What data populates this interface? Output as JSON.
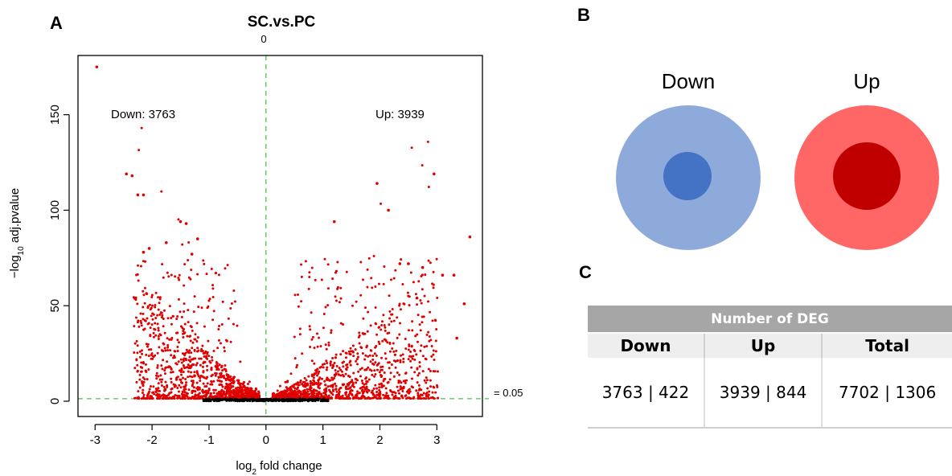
{
  "panels": {
    "a": "A",
    "b": "B",
    "c": "C"
  },
  "chart_data": {
    "type": "scatter",
    "title": "SC.vs.PC",
    "xlabel": "log2 fold change",
    "ylabel": "−log10 adj.pvalue",
    "xlim": [
      -3.3,
      3.8
    ],
    "ylim": [
      -8,
      181
    ],
    "x_ticks": [
      -3,
      -2,
      -1,
      0,
      1,
      2,
      3
    ],
    "y_ticks": [
      0,
      50,
      100,
      150
    ],
    "vline": {
      "x": 0,
      "label": "0"
    },
    "hline": {
      "y": 1.3,
      "label": "= 0.05"
    },
    "annotations": {
      "down": "Down: 3763",
      "up": "Up: 3939"
    },
    "colors": {
      "significant": "#e00000",
      "not_significant": "#000000",
      "threshold_line": "#4cc44c"
    },
    "highlight_points": [
      [
        -2.97,
        175
      ],
      [
        -2.45,
        119
      ],
      [
        -2.35,
        118
      ],
      [
        -2.25,
        108
      ],
      [
        -2.15,
        108
      ],
      [
        -1.5,
        94
      ],
      [
        -1.4,
        93
      ],
      [
        -1.2,
        85
      ],
      [
        -1.3,
        77
      ],
      [
        -1.75,
        83
      ],
      [
        -2.05,
        80
      ],
      [
        -2.15,
        78
      ],
      [
        1.95,
        114
      ],
      [
        2.95,
        119
      ],
      [
        2.15,
        100
      ],
      [
        1.2,
        94
      ],
      [
        3.58,
        86
      ],
      [
        2.35,
        72
      ],
      [
        2.5,
        72
      ],
      [
        3.1,
        66
      ],
      [
        3.3,
        66
      ],
      [
        2.75,
        70
      ],
      [
        3.48,
        51
      ],
      [
        2.65,
        54
      ],
      [
        3.35,
        33
      ]
    ]
  },
  "venn": {
    "down_label": "Down",
    "up_label": "Up",
    "colors": {
      "down_outer": "#8eaadb",
      "down_inner": "#4472c4",
      "up_outer": "#ff6666",
      "up_inner": "#c00000"
    }
  },
  "table": {
    "title": "Number of DEG",
    "headers": [
      "Down",
      "Up",
      "Total"
    ],
    "row": [
      "3763 | 422",
      "3939 | 844",
      "7702 | 1306"
    ],
    "colors": {
      "title_bg": "#a6a6a6",
      "header_bg": "#eeeeee"
    }
  }
}
